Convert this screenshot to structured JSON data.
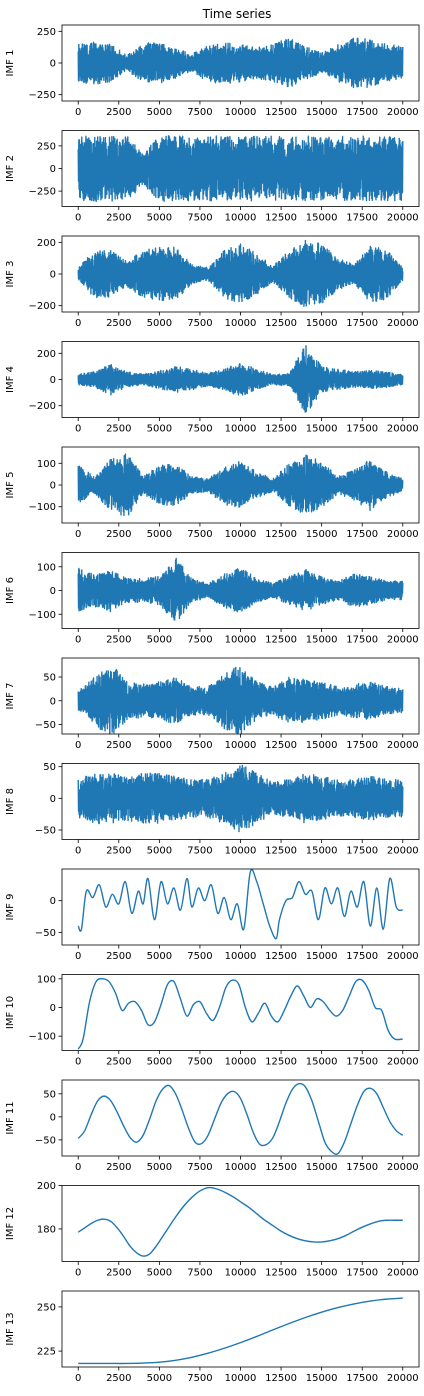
{
  "figure": {
    "title": "Time series"
  },
  "colors": {
    "series": "#1f77b4",
    "axes": "#000000",
    "background": "#ffffff"
  },
  "chart_data": [
    {
      "type": "line",
      "ylabel": "IMF 1",
      "xlim": [
        -1000,
        21000
      ],
      "ylim": [
        -300,
        300
      ],
      "xticks": [
        0,
        2500,
        5000,
        7500,
        10000,
        12500,
        15000,
        17500,
        20000
      ],
      "yticks": [
        -250,
        0,
        250
      ],
      "ytick_labels": [
        "−250",
        "0",
        "250"
      ],
      "x": [
        0,
        20000
      ],
      "amplitude": [
        150,
        170,
        150,
        60,
        155,
        170,
        120,
        70,
        150,
        165,
        150,
        120,
        150,
        200,
        130,
        80,
        150,
        200,
        190,
        150,
        130
      ],
      "kind": "noise"
    },
    {
      "type": "line",
      "ylabel": "IMF 2",
      "xlim": [
        -1000,
        21000
      ],
      "ylim": [
        -420,
        420
      ],
      "xticks": [
        0,
        2500,
        5000,
        7500,
        10000,
        12500,
        15000,
        17500,
        20000
      ],
      "yticks": [
        -250,
        0,
        250
      ],
      "ytick_labels": [
        "−250",
        "0",
        "250"
      ],
      "x": [
        0,
        20000
      ],
      "amplitude": [
        350,
        365,
        360,
        360,
        180,
        365,
        360,
        355,
        360,
        360,
        350,
        360,
        360,
        355,
        360,
        355,
        355,
        360,
        355,
        360,
        355
      ],
      "kind": "noise"
    },
    {
      "type": "line",
      "ylabel": "IMF 3",
      "xlim": [
        -1000,
        21000
      ],
      "ylim": [
        -240,
        240
      ],
      "xticks": [
        0,
        2500,
        5000,
        7500,
        10000,
        12500,
        15000,
        17500,
        20000
      ],
      "yticks": [
        -200,
        0,
        200
      ],
      "ytick_labels": [
        "−200",
        "0",
        "200"
      ],
      "x": [
        0,
        20000
      ],
      "amplitude": [
        40,
        150,
        150,
        80,
        150,
        170,
        170,
        60,
        40,
        150,
        190,
        130,
        50,
        150,
        215,
        190,
        100,
        60,
        180,
        160,
        40
      ],
      "kind": "noise"
    },
    {
      "type": "line",
      "ylabel": "IMF 4",
      "xlim": [
        -1000,
        21000
      ],
      "ylim": [
        -290,
        290
      ],
      "xticks": [
        0,
        2500,
        5000,
        7500,
        10000,
        12500,
        15000,
        17500,
        20000
      ],
      "yticks": [
        -200,
        0,
        200
      ],
      "ytick_labels": [
        "−200",
        "0",
        "200"
      ],
      "x": [
        0,
        20000
      ],
      "amplitude": [
        40,
        60,
        120,
        60,
        40,
        70,
        100,
        80,
        50,
        80,
        130,
        80,
        40,
        50,
        270,
        100,
        80,
        60,
        70,
        60,
        40
      ],
      "kind": "noise"
    },
    {
      "type": "line",
      "ylabel": "IMF 5",
      "xlim": [
        -1000,
        21000
      ],
      "ylim": [
        -175,
        175
      ],
      "xticks": [
        0,
        2500,
        5000,
        7500,
        10000,
        12500,
        15000,
        17500,
        20000
      ],
      "yticks": [
        -100,
        0,
        100
      ],
      "ytick_labels": [
        "−100",
        "0",
        "100"
      ],
      "x": [
        0,
        20000
      ],
      "amplitude": [
        90,
        40,
        120,
        150,
        40,
        90,
        100,
        40,
        30,
        90,
        110,
        60,
        30,
        100,
        140,
        110,
        40,
        70,
        120,
        60,
        30
      ],
      "kind": "noise"
    },
    {
      "type": "line",
      "ylabel": "IMF 6",
      "xlim": [
        -1000,
        21000
      ],
      "ylim": [
        -160,
        160
      ],
      "xticks": [
        0,
        2500,
        5000,
        7500,
        10000,
        12500,
        15000,
        17500,
        20000
      ],
      "yticks": [
        -100,
        0,
        100
      ],
      "ytick_labels": [
        "−100",
        "0",
        "100"
      ],
      "x": [
        0,
        20000
      ],
      "amplitude": [
        100,
        70,
        90,
        50,
        50,
        60,
        140,
        50,
        30,
        70,
        100,
        50,
        30,
        60,
        90,
        60,
        40,
        70,
        60,
        40,
        40
      ],
      "kind": "noise"
    },
    {
      "type": "line",
      "ylabel": "IMF 7",
      "xlim": [
        -1000,
        21000
      ],
      "ylim": [
        -70,
        90
      ],
      "xticks": [
        0,
        2500,
        5000,
        7500,
        10000,
        12500,
        15000,
        17500,
        20000
      ],
      "yticks": [
        -50,
        0,
        50
      ],
      "ytick_labels": [
        "−50",
        "0",
        "50"
      ],
      "x": [
        0,
        20000
      ],
      "amplitude": [
        20,
        50,
        80,
        40,
        35,
        40,
        50,
        30,
        30,
        60,
        75,
        40,
        30,
        50,
        45,
        40,
        30,
        35,
        40,
        30,
        25
      ],
      "kind": "noise"
    },
    {
      "type": "line",
      "ylabel": "IMF 8",
      "xlim": [
        -1000,
        21000
      ],
      "ylim": [
        -65,
        55
      ],
      "xticks": [
        0,
        2500,
        5000,
        7500,
        10000,
        12500,
        15000,
        17500,
        20000
      ],
      "yticks": [
        -50,
        0,
        50
      ],
      "ytick_labels": [
        "−50",
        "0",
        "50"
      ],
      "x": [
        0,
        20000
      ],
      "amplitude": [
        30,
        40,
        40,
        35,
        40,
        40,
        35,
        30,
        30,
        40,
        55,
        40,
        25,
        30,
        40,
        35,
        30,
        30,
        35,
        30,
        30
      ],
      "kind": "noise"
    },
    {
      "type": "line",
      "ylabel": "IMF 9",
      "xlim": [
        -1000,
        21000
      ],
      "ylim": [
        -70,
        50
      ],
      "xticks": [
        0,
        2500,
        5000,
        7500,
        10000,
        12500,
        15000,
        17500,
        20000
      ],
      "yticks": [
        -50,
        0
      ],
      "ytick_labels": [
        "−50",
        "0"
      ],
      "x": [
        0,
        200,
        500,
        900,
        1300,
        1700,
        2100,
        2500,
        2900,
        3300,
        3700,
        4000,
        4300,
        4700,
        5100,
        5500,
        5900,
        6300,
        6700,
        7000,
        7400,
        7800,
        8200,
        8600,
        9000,
        9400,
        9800,
        10200,
        10600,
        11000,
        11400,
        11800,
        12200,
        12400,
        12800,
        13200,
        13600,
        14000,
        14400,
        14800,
        15200,
        15600,
        16000,
        16400,
        16800,
        17200,
        17600,
        18000,
        18400,
        18800,
        19200,
        19600,
        20000
      ],
      "y": [
        -40,
        -45,
        15,
        5,
        25,
        -10,
        10,
        -5,
        30,
        -20,
        15,
        -5,
        35,
        -30,
        30,
        -5,
        20,
        -15,
        35,
        -10,
        20,
        0,
        25,
        -20,
        5,
        -30,
        -5,
        -45,
        45,
        30,
        -5,
        -40,
        -60,
        -30,
        0,
        5,
        30,
        10,
        15,
        -30,
        20,
        -5,
        20,
        -25,
        15,
        -10,
        30,
        -40,
        20,
        -45,
        35,
        -10,
        -15
      ]
    },
    {
      "type": "line",
      "ylabel": "IMF 10",
      "xlim": [
        -1000,
        21000
      ],
      "ylim": [
        -150,
        115
      ],
      "xticks": [
        0,
        2500,
        5000,
        7500,
        10000,
        12500,
        15000,
        17500,
        20000
      ],
      "yticks": [
        -100,
        0,
        100
      ],
      "ytick_labels": [
        "−100",
        "0",
        "100"
      ],
      "x": [
        0,
        300,
        700,
        1100,
        1500,
        1900,
        2300,
        2700,
        3100,
        3500,
        3900,
        4300,
        4700,
        5100,
        5500,
        5900,
        6300,
        6700,
        7100,
        7500,
        7900,
        8300,
        8700,
        9100,
        9500,
        9900,
        10300,
        10700,
        11100,
        11500,
        11900,
        12300,
        12700,
        13100,
        13500,
        13900,
        14300,
        14700,
        15100,
        15500,
        15900,
        16300,
        16700,
        17100,
        17500,
        17900,
        18300,
        18700,
        19100,
        19500,
        20000
      ],
      "y": [
        -145,
        -110,
        20,
        90,
        100,
        90,
        50,
        -10,
        15,
        20,
        -10,
        -60,
        -50,
        10,
        80,
        90,
        30,
        -30,
        10,
        20,
        -20,
        -45,
        0,
        70,
        95,
        80,
        0,
        -50,
        -20,
        15,
        -30,
        -50,
        -10,
        40,
        75,
        40,
        0,
        30,
        20,
        -10,
        -30,
        -10,
        40,
        90,
        95,
        60,
        0,
        -10,
        -80,
        -110,
        -110
      ]
    },
    {
      "type": "line",
      "ylabel": "IMF 11",
      "xlim": [
        -1000,
        21000
      ],
      "ylim": [
        -85,
        80
      ],
      "xticks": [
        0,
        2500,
        5000,
        7500,
        10000,
        12500,
        15000,
        17500,
        20000
      ],
      "yticks": [
        -50,
        0,
        50
      ],
      "ytick_labels": [
        "−50",
        "0",
        "50"
      ],
      "x": [
        0,
        400,
        800,
        1200,
        1600,
        2000,
        2400,
        2800,
        3200,
        3600,
        4000,
        4400,
        4800,
        5200,
        5600,
        6000,
        6400,
        6800,
        7200,
        7600,
        8000,
        8400,
        8800,
        9200,
        9600,
        10000,
        10400,
        10800,
        11200,
        11600,
        12000,
        12400,
        12800,
        13200,
        13600,
        14000,
        14400,
        14800,
        15200,
        15600,
        16000,
        16400,
        16800,
        17200,
        17600,
        18000,
        18400,
        18800,
        19200,
        19600,
        20000
      ],
      "y": [
        -47,
        -30,
        5,
        35,
        45,
        35,
        10,
        -20,
        -45,
        -55,
        -40,
        -5,
        35,
        60,
        68,
        50,
        15,
        -25,
        -55,
        -58,
        -40,
        -5,
        30,
        50,
        55,
        40,
        5,
        -35,
        -60,
        -60,
        -45,
        -10,
        30,
        60,
        72,
        65,
        35,
        -10,
        -55,
        -75,
        -80,
        -55,
        -15,
        25,
        55,
        62,
        50,
        20,
        -10,
        -30,
        -40
      ]
    },
    {
      "type": "line",
      "ylabel": "IMF 12",
      "xlim": [
        -1000,
        21000
      ],
      "ylim": [
        165,
        200
      ],
      "xticks": [
        0,
        2500,
        5000,
        7500,
        10000,
        12500,
        15000,
        17500,
        20000
      ],
      "yticks": [
        180,
        200
      ],
      "ytick_labels": [
        "180",
        "200"
      ],
      "x": [
        0,
        400,
        800,
        1200,
        1600,
        2000,
        2400,
        2800,
        3200,
        3600,
        4000,
        4400,
        4800,
        5200,
        5600,
        6000,
        6500,
        7000,
        7500,
        8000,
        8500,
        9000,
        9500,
        10000,
        10500,
        11000,
        11500,
        12000,
        12500,
        13000,
        13500,
        14000,
        14500,
        15000,
        15500,
        16000,
        16500,
        17000,
        17500,
        18000,
        18500,
        19000,
        19500,
        20000
      ],
      "y": [
        178.5,
        180.5,
        182.5,
        184,
        184.5,
        183.5,
        180.5,
        176.5,
        172,
        169,
        167.5,
        168.5,
        172,
        176.5,
        181,
        185.5,
        190.5,
        194.5,
        197.5,
        199,
        198.5,
        197,
        195,
        192.5,
        190,
        187,
        184,
        181.5,
        179,
        177,
        175.5,
        174.5,
        174,
        174,
        174.5,
        175.5,
        177,
        179,
        180.8,
        182.3,
        183.5,
        184,
        184,
        184
      ]
    },
    {
      "type": "line",
      "ylabel": "IMF 13",
      "xlim": [
        -1000,
        21000
      ],
      "ylim": [
        216,
        259
      ],
      "xticks": [
        0,
        2500,
        5000,
        7500,
        10000,
        12500,
        15000,
        17500,
        20000
      ],
      "yticks": [
        225,
        250
      ],
      "ytick_labels": [
        "225",
        "250"
      ],
      "x": [
        0,
        1000,
        2000,
        3000,
        4000,
        5000,
        6000,
        7000,
        8000,
        9000,
        10000,
        11000,
        12000,
        13000,
        14000,
        15000,
        16000,
        17000,
        18000,
        19000,
        20000
      ],
      "y": [
        218,
        218,
        218,
        218,
        218.2,
        218.7,
        219.8,
        221.5,
        223.8,
        226.6,
        229.8,
        233.3,
        237,
        240.6,
        244,
        247,
        249.6,
        251.7,
        253.3,
        254.4,
        255
      ]
    }
  ]
}
